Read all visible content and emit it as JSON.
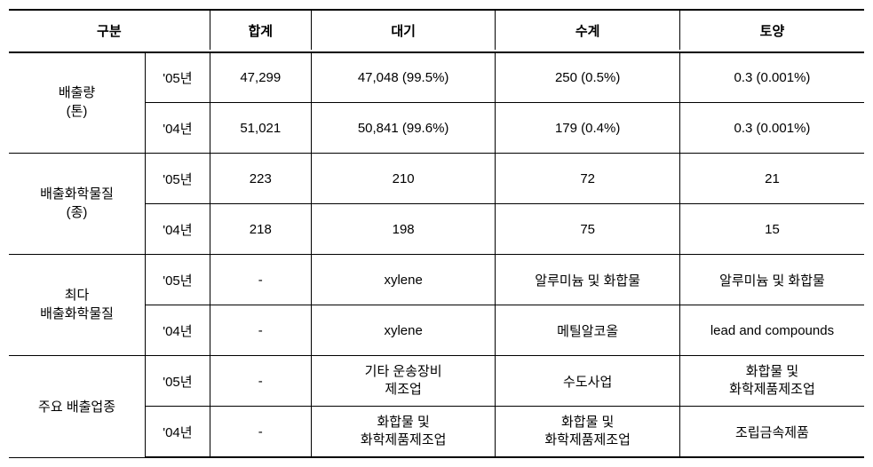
{
  "header": {
    "category": "구분",
    "total": "합계",
    "air": "대기",
    "water": "수계",
    "soil": "토양"
  },
  "years": {
    "y05": "'05년",
    "y04": "'04년"
  },
  "rows": {
    "emission": {
      "label_l1": "배출량",
      "label_l2": "(톤)",
      "y05": {
        "total": "47,299",
        "air": "47,048 (99.5%)",
        "water": "250 (0.5%)",
        "soil": "0.3 (0.001%)"
      },
      "y04": {
        "total": "51,021",
        "air": "50,841 (99.6%)",
        "water": "179 (0.4%)",
        "soil": "0.3 (0.001%)"
      }
    },
    "chemicals": {
      "label_l1": "배출화학물질",
      "label_l2": "(종)",
      "y05": {
        "total": "223",
        "air": "210",
        "water": "72",
        "soil": "21"
      },
      "y04": {
        "total": "218",
        "air": "198",
        "water": "75",
        "soil": "15"
      }
    },
    "topchem": {
      "label_l1": "최다",
      "label_l2": "배출화학물질",
      "y05": {
        "total": "-",
        "air": "xylene",
        "water": "알루미늄 및 화합물",
        "soil": "알루미늄 및 화합물"
      },
      "y04": {
        "total": "-",
        "air": "xylene",
        "water": "메틸알코올",
        "soil": "lead and compounds"
      }
    },
    "industry": {
      "label": "주요 배출업종",
      "y05": {
        "total": "-",
        "air_l1": "기타 운송장비",
        "air_l2": "제조업",
        "water": "수도사업",
        "soil_l1": "화합물 및",
        "soil_l2": "화학제품제조업"
      },
      "y04": {
        "total": "-",
        "air_l1": "화합물 및",
        "air_l2": "화학제품제조업",
        "water_l1": "화합물 및",
        "water_l2": "화학제품제조업",
        "soil": "조립금속제품"
      }
    }
  }
}
